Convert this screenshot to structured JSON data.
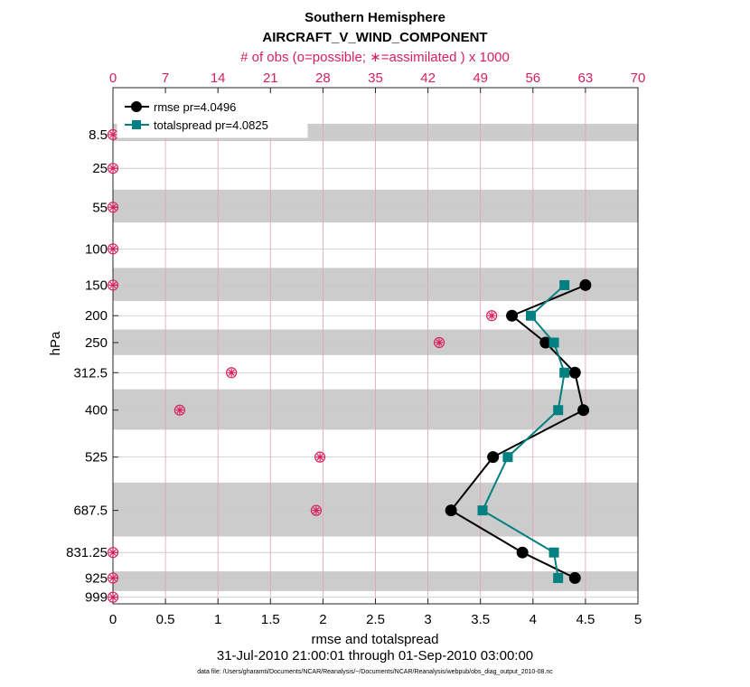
{
  "chart_data": {
    "type": "line",
    "title": "Southern Hemisphere",
    "subtitle": "AIRCRAFT_V_WIND_COMPONENT",
    "top_axis_label": "# of obs (o=possible; ∗=assimilated ) x 1000",
    "xlabel": "rmse and totalspread",
    "ylabel": "hPa",
    "date_range": "31-Jul-2010 21:00:01 through 01-Sep-2010 03:00:00",
    "data_file": "data file: /Users/gharamti/Documents/NCAR/Reanalysis/~/Documents/NCAR/Reanalysis/webpub/obs_diag_output_2010-08.nc",
    "xlim": [
      0,
      5
    ],
    "top_xlim": [
      0,
      70
    ],
    "x_ticks": [
      "0",
      "0.5",
      "1",
      "1.5",
      "2",
      "2.5",
      "3",
      "3.5",
      "4",
      "4.5",
      "5"
    ],
    "top_ticks": [
      "0",
      "7",
      "14",
      "21",
      "28",
      "35",
      "42",
      "49",
      "56",
      "63",
      "70"
    ],
    "y_ticks": [
      "8.5",
      "25",
      "55",
      "100",
      "150",
      "200",
      "250",
      "312.5",
      "400",
      "525",
      "687.5",
      "831.25",
      "925",
      "999"
    ],
    "levels": [
      8.5,
      25,
      55,
      100,
      150,
      200,
      250,
      312.5,
      400,
      525,
      687.5,
      831.25,
      925,
      999
    ],
    "shaded_bands": [
      [
        5,
        11
      ],
      [
        40,
        70
      ],
      [
        125,
        175
      ],
      [
        225,
        275
      ],
      [
        350,
        450
      ],
      [
        600,
        775
      ],
      [
        900,
        975
      ]
    ],
    "series": [
      {
        "name": "rmse",
        "legend": "rmse pr=4.0496",
        "color": "#000000",
        "marker": "circle",
        "levels": [
          150,
          200,
          250,
          312.5,
          400,
          525,
          687.5,
          831.25,
          925
        ],
        "values": [
          4.5,
          3.8,
          4.12,
          4.4,
          4.48,
          3.62,
          3.22,
          3.9,
          4.4
        ]
      },
      {
        "name": "totalspread",
        "legend": "totalspread pr=4.0825",
        "color": "#008080",
        "marker": "square",
        "levels": [
          150,
          200,
          250,
          312.5,
          400,
          525,
          687.5,
          831.25,
          925
        ],
        "values": [
          4.3,
          3.98,
          4.2,
          4.3,
          4.24,
          3.76,
          3.52,
          4.2,
          4.24
        ]
      }
    ],
    "obs_counts": {
      "levels": [
        8.5,
        25,
        55,
        100,
        150,
        200,
        250,
        312.5,
        400,
        525,
        687.5,
        831.25,
        925,
        999
      ],
      "possible": [
        0,
        0,
        0,
        0,
        0,
        50.5,
        43.5,
        15.8,
        8.9,
        27.6,
        27.1,
        0,
        0,
        0
      ],
      "assimilated": [
        0,
        0,
        0,
        0,
        0,
        50.5,
        43.5,
        15.8,
        8.9,
        27.6,
        27.1,
        0,
        0,
        0
      ]
    }
  }
}
